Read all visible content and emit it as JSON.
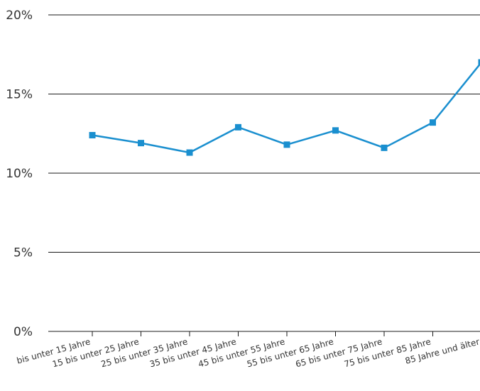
{
  "chart_data": {
    "type": "line",
    "title": "",
    "xlabel": "",
    "ylabel": "",
    "categories": [
      "bis unter 15 Jahre",
      "15 bis unter 25 Jahre",
      "25 bis unter 35 Jahre",
      "35 bis unter 45 Jahre",
      "45 bis unter 55 Jahre",
      "55 bis unter 65 Jahre",
      "65 bis unter 75 Jahre",
      "75 bis unter 85 Jahre",
      "85 Jahre und älter"
    ],
    "series": [
      {
        "color": "#1a8fcf",
        "values": [
          12.4,
          11.9,
          11.3,
          12.9,
          11.8,
          12.7,
          11.6,
          13.2,
          17.0
        ]
      }
    ],
    "ylim": [
      0,
      20
    ],
    "yticks": [
      0,
      5,
      10,
      15,
      20
    ],
    "ytick_labels": [
      "0%",
      "5%",
      "10%",
      "15%",
      "20%"
    ],
    "grid": true,
    "legend": "none"
  }
}
